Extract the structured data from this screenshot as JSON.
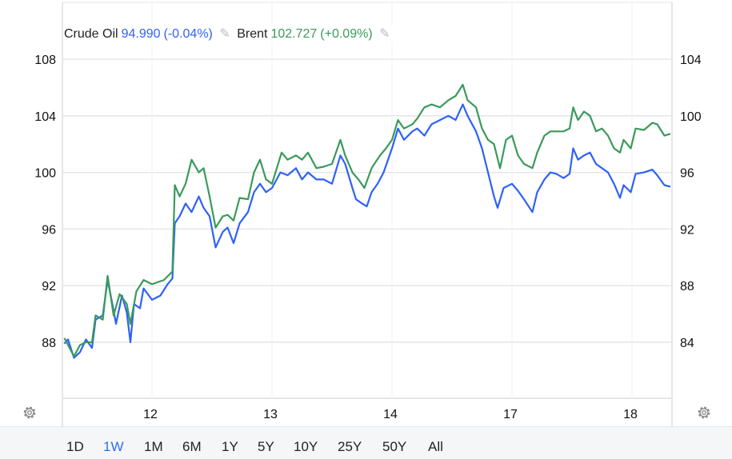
{
  "legend": {
    "crude": {
      "name": "Crude Oil",
      "price": "94.990",
      "change": "(-0.04%)"
    },
    "brent": {
      "name": "Brent",
      "price": "102.727",
      "change": "(+0.09%)"
    }
  },
  "ranges": [
    "1D",
    "1W",
    "1M",
    "6M",
    "1Y",
    "5Y",
    "10Y",
    "25Y",
    "50Y",
    "All"
  ],
  "active_range": "1W",
  "chart_data": {
    "type": "line",
    "title": "",
    "x_unit": "trading days since the 12th",
    "xticks": [
      {
        "t": 0,
        "label": "12"
      },
      {
        "t": 1,
        "label": "13"
      },
      {
        "t": 2,
        "label": "14"
      },
      {
        "t": 3,
        "label": "17"
      },
      {
        "t": 4,
        "label": "18"
      }
    ],
    "left_axis": {
      "ticks": [
        "108",
        "104",
        "100",
        "96",
        "92",
        "88"
      ],
      "range": [
        84,
        111.9
      ]
    },
    "right_axis": {
      "ticks": [
        "104",
        "100",
        "96",
        "92",
        "88",
        "84"
      ],
      "range": [
        80,
        107.9
      ]
    },
    "grid": true,
    "series": [
      {
        "name": "Crude Oil",
        "color": "#2f62f5",
        "axis": "right",
        "points": [
          [
            -0.73,
            83.9
          ],
          [
            -0.7,
            84.2
          ],
          [
            -0.65,
            82.9
          ],
          [
            -0.6,
            83.3
          ],
          [
            -0.55,
            84.2
          ],
          [
            -0.5,
            83.6
          ],
          [
            -0.47,
            85.6
          ],
          [
            -0.41,
            85.9
          ],
          [
            -0.37,
            88.4
          ],
          [
            -0.33,
            86.7
          ],
          [
            -0.3,
            85.3
          ],
          [
            -0.25,
            87.3
          ],
          [
            -0.21,
            86.1
          ],
          [
            -0.18,
            84.0
          ],
          [
            -0.15,
            86.7
          ],
          [
            -0.1,
            86.4
          ],
          [
            -0.07,
            87.8
          ],
          [
            0,
            87.0
          ],
          [
            0.07,
            87.3
          ],
          [
            0.13,
            88.1
          ],
          [
            0.17,
            88.5
          ],
          [
            0.19,
            92.4
          ],
          [
            0.23,
            92.9
          ],
          [
            0.28,
            93.8
          ],
          [
            0.33,
            93.2
          ],
          [
            0.39,
            94.3
          ],
          [
            0.43,
            93.5
          ],
          [
            0.48,
            92.9
          ],
          [
            0.53,
            90.7
          ],
          [
            0.59,
            91.8
          ],
          [
            0.63,
            92.1
          ],
          [
            0.68,
            91.0
          ],
          [
            0.73,
            92.4
          ],
          [
            0.8,
            93.2
          ],
          [
            0.85,
            94.6
          ],
          [
            0.9,
            95.2
          ],
          [
            0.95,
            94.6
          ],
          [
            1.0,
            94.9
          ],
          [
            1.07,
            96.0
          ],
          [
            1.13,
            95.8
          ],
          [
            1.2,
            96.3
          ],
          [
            1.25,
            95.5
          ],
          [
            1.3,
            96.0
          ],
          [
            1.37,
            95.5
          ],
          [
            1.43,
            95.5
          ],
          [
            1.5,
            95.2
          ],
          [
            1.57,
            97.2
          ],
          [
            1.61,
            96.6
          ],
          [
            1.67,
            94.9
          ],
          [
            1.7,
            94.1
          ],
          [
            1.75,
            93.8
          ],
          [
            1.79,
            93.6
          ],
          [
            1.83,
            94.6
          ],
          [
            1.88,
            95.2
          ],
          [
            1.93,
            96.0
          ],
          [
            2.0,
            97.7
          ],
          [
            2.05,
            99.1
          ],
          [
            2.1,
            98.3
          ],
          [
            2.17,
            98.9
          ],
          [
            2.21,
            99.1
          ],
          [
            2.27,
            98.6
          ],
          [
            2.33,
            99.4
          ],
          [
            2.4,
            99.7
          ],
          [
            2.47,
            100.0
          ],
          [
            2.53,
            99.7
          ],
          [
            2.59,
            100.8
          ],
          [
            2.63,
            100.0
          ],
          [
            2.7,
            98.9
          ],
          [
            2.75,
            97.7
          ],
          [
            2.8,
            96.0
          ],
          [
            2.85,
            94.3
          ],
          [
            2.88,
            93.5
          ],
          [
            2.93,
            94.9
          ],
          [
            3.0,
            95.2
          ],
          [
            3.05,
            94.7
          ],
          [
            3.1,
            94.1
          ],
          [
            3.17,
            93.2
          ],
          [
            3.21,
            94.6
          ],
          [
            3.27,
            95.5
          ],
          [
            3.32,
            96.0
          ],
          [
            3.37,
            95.9
          ],
          [
            3.43,
            95.6
          ],
          [
            3.48,
            95.9
          ],
          [
            3.51,
            97.7
          ],
          [
            3.55,
            96.9
          ],
          [
            3.6,
            97.2
          ],
          [
            3.65,
            97.4
          ],
          [
            3.7,
            96.6
          ],
          [
            3.75,
            96.3
          ],
          [
            3.8,
            96.0
          ],
          [
            3.85,
            95.2
          ],
          [
            3.9,
            94.2
          ],
          [
            3.93,
            95.1
          ],
          [
            3.99,
            94.6
          ],
          [
            4.03,
            95.9
          ],
          [
            4.1,
            96.0
          ],
          [
            4.17,
            96.2
          ],
          [
            4.21,
            95.8
          ],
          [
            4.27,
            95.1
          ],
          [
            4.32,
            94.99
          ]
        ]
      },
      {
        "name": "Brent",
        "color": "#3a9a5b",
        "axis": "left",
        "points": [
          [
            -0.73,
            88.3
          ],
          [
            -0.65,
            87.0
          ],
          [
            -0.6,
            87.8
          ],
          [
            -0.55,
            88.0
          ],
          [
            -0.5,
            88.0
          ],
          [
            -0.47,
            89.9
          ],
          [
            -0.41,
            89.6
          ],
          [
            -0.37,
            92.7
          ],
          [
            -0.32,
            89.9
          ],
          [
            -0.27,
            91.4
          ],
          [
            -0.21,
            90.7
          ],
          [
            -0.18,
            89.3
          ],
          [
            -0.13,
            91.6
          ],
          [
            -0.07,
            92.4
          ],
          [
            0,
            92.1
          ],
          [
            0.1,
            92.4
          ],
          [
            0.17,
            93.0
          ],
          [
            0.19,
            99.1
          ],
          [
            0.23,
            98.3
          ],
          [
            0.28,
            99.2
          ],
          [
            0.33,
            100.9
          ],
          [
            0.39,
            100.0
          ],
          [
            0.43,
            100.3
          ],
          [
            0.48,
            98.3
          ],
          [
            0.53,
            96.1
          ],
          [
            0.59,
            96.9
          ],
          [
            0.63,
            97.0
          ],
          [
            0.68,
            96.6
          ],
          [
            0.73,
            98.2
          ],
          [
            0.8,
            98.1
          ],
          [
            0.85,
            100.0
          ],
          [
            0.9,
            100.9
          ],
          [
            0.95,
            99.5
          ],
          [
            1.0,
            99.2
          ],
          [
            1.08,
            101.4
          ],
          [
            1.13,
            100.9
          ],
          [
            1.2,
            101.2
          ],
          [
            1.25,
            100.9
          ],
          [
            1.3,
            101.4
          ],
          [
            1.37,
            100.3
          ],
          [
            1.43,
            100.4
          ],
          [
            1.5,
            100.6
          ],
          [
            1.57,
            102.3
          ],
          [
            1.61,
            101.2
          ],
          [
            1.67,
            100.0
          ],
          [
            1.72,
            99.5
          ],
          [
            1.77,
            98.9
          ],
          [
            1.83,
            100.3
          ],
          [
            1.9,
            101.2
          ],
          [
            1.95,
            101.7
          ],
          [
            2.0,
            102.3
          ],
          [
            2.05,
            103.7
          ],
          [
            2.1,
            103.1
          ],
          [
            2.17,
            103.4
          ],
          [
            2.21,
            103.8
          ],
          [
            2.27,
            104.6
          ],
          [
            2.33,
            104.8
          ],
          [
            2.4,
            104.6
          ],
          [
            2.47,
            105.1
          ],
          [
            2.53,
            105.4
          ],
          [
            2.59,
            106.2
          ],
          [
            2.63,
            105.1
          ],
          [
            2.7,
            104.6
          ],
          [
            2.75,
            103.1
          ],
          [
            2.8,
            102.3
          ],
          [
            2.85,
            102.0
          ],
          [
            2.9,
            100.3
          ],
          [
            2.95,
            102.3
          ],
          [
            3.0,
            102.6
          ],
          [
            3.05,
            101.2
          ],
          [
            3.1,
            100.6
          ],
          [
            3.17,
            100.3
          ],
          [
            3.21,
            101.4
          ],
          [
            3.27,
            102.6
          ],
          [
            3.32,
            102.9
          ],
          [
            3.43,
            102.9
          ],
          [
            3.48,
            103.1
          ],
          [
            3.51,
            104.6
          ],
          [
            3.55,
            103.7
          ],
          [
            3.6,
            104.3
          ],
          [
            3.65,
            104.0
          ],
          [
            3.7,
            102.9
          ],
          [
            3.75,
            103.1
          ],
          [
            3.8,
            102.6
          ],
          [
            3.85,
            101.7
          ],
          [
            3.9,
            101.4
          ],
          [
            3.93,
            102.3
          ],
          [
            3.99,
            101.7
          ],
          [
            4.03,
            103.1
          ],
          [
            4.1,
            103.0
          ],
          [
            4.17,
            103.5
          ],
          [
            4.21,
            103.4
          ],
          [
            4.27,
            102.6
          ],
          [
            4.32,
            102.727
          ]
        ]
      }
    ]
  }
}
